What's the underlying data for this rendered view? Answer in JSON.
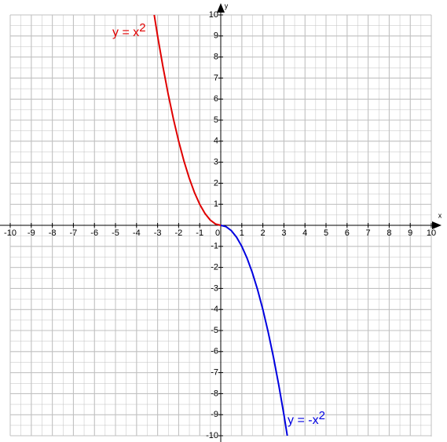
{
  "chart_data": {
    "type": "line",
    "x_label": "x",
    "y_label": "y",
    "xlim": [
      -10,
      10
    ],
    "ylim": [
      -10,
      10
    ],
    "xticks": [
      -10,
      -9,
      -8,
      -7,
      -6,
      -5,
      -4,
      -3,
      -2,
      -1,
      0,
      1,
      2,
      3,
      4,
      5,
      6,
      7,
      8,
      9,
      10
    ],
    "yticks": [
      -10,
      -9,
      -8,
      -7,
      -6,
      -5,
      -4,
      -3,
      -2,
      -1,
      1,
      2,
      3,
      4,
      5,
      6,
      7,
      8,
      9,
      10
    ],
    "grid": true,
    "series": [
      {
        "name": "y = x",
        "name_sup": "2",
        "color": "#e00000",
        "x": [
          -3.16,
          -3,
          -2.75,
          -2.5,
          -2.25,
          -2,
          -1.75,
          -1.5,
          -1.25,
          -1,
          -0.75,
          -0.5,
          -0.25,
          0
        ],
        "values": [
          10,
          9,
          7.5625,
          6.25,
          5.0625,
          4,
          3.0625,
          2.25,
          1.5625,
          1,
          0.5625,
          0.25,
          0.0625,
          0
        ]
      },
      {
        "name": "y = -x",
        "name_sup": "2",
        "color": "#0000e0",
        "x": [
          0,
          0.25,
          0.5,
          0.75,
          1,
          1.25,
          1.5,
          1.75,
          2,
          2.25,
          2.5,
          2.75,
          3,
          3.16
        ],
        "values": [
          0,
          -0.0625,
          -0.25,
          -0.5625,
          -1,
          -1.5625,
          -2.25,
          -3.0625,
          -4,
          -5.0625,
          -6.25,
          -7.5625,
          -9,
          -10
        ]
      }
    ]
  }
}
